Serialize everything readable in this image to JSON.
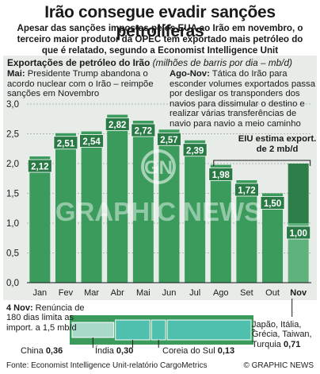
{
  "title": "Irão consegue evadir sanções petrolíferas",
  "subtitle": "Apesar das sanções impostas pelos EUA ao Irão em novembro, o terceiro maior produtor da OPEC tem exportado mais petróleo do que é relatado, segundo a Economist Intelligence Unit",
  "chart_head": {
    "label": "Exportações de petróleo do Irão",
    "unit": "(milhões de barris por dia – mb/d)"
  },
  "notes": {
    "mai": {
      "lead": "Mai:",
      "text": " Presidente Trump abandona o acordo nuclear com o Irão – reimpõe sanções em Novembro"
    },
    "ago": {
      "lead": "Ago-Nov:",
      "text": " Tática do Irão para esconder volumes exportados passa por desligar os transponders dos navios para dissimular o destino e realizar várias transferências de navio para navio a meio caminho"
    },
    "eiu": "EIU estima export. de 2 mb/d"
  },
  "bottom_note": {
    "lead": "4 Nov:",
    "text": " Renúncia de 180 dias limita as import. a 1,5 mb/d"
  },
  "waiver_labels": {
    "china": {
      "name": "China",
      "value": "0,36"
    },
    "india": {
      "name": "Índia",
      "value": "0,30"
    },
    "korea": {
      "name": "Coreia do Sul",
      "value": "0,13"
    },
    "japan": {
      "name": "Japão, Itália, Grécia, Taiwan, Turquia",
      "value": "0,71"
    }
  },
  "footer": {
    "source": "Fonte: Economist Intelligence Unit-relatório CargoMetrics",
    "brand": "© GRAPHIC NEWS"
  },
  "watermark": {
    "mark": "GN",
    "text": "GRAPHIC NEWS"
  },
  "colors": {
    "bar": "#3a9b5c",
    "bar_dark": "#2a7a45",
    "bar_nov_upper": "#2e7e4a",
    "bar_nov_lower": "#5fb27b",
    "panel": "#e7ece8",
    "waiver_fill": "#4fbfae",
    "waiver_frame": "#3a9b5c"
  },
  "chart_data": {
    "type": "bar",
    "title": "Exportações de petróleo do Irão",
    "ylabel": "milhões de barris por dia – mb/d",
    "categories": [
      "Jan",
      "Fev",
      "Mar",
      "Abr",
      "Mai",
      "Jun",
      "Jul",
      "Ago",
      "Set",
      "Out",
      "Nov"
    ],
    "values": [
      2.12,
      2.51,
      2.54,
      2.82,
      2.72,
      2.57,
      2.39,
      1.98,
      1.72,
      1.5,
      1.0
    ],
    "value_labels": [
      "2,12",
      "2,51",
      "2,54",
      "2,82",
      "2,72",
      "2,57",
      "2,39",
      "1,98",
      "1,72",
      "1,50",
      "1,00"
    ],
    "estimate": {
      "category": "Nov",
      "value": 2.0,
      "label": "EIU estima export. de 2 mb/d"
    },
    "ylim": [
      0,
      3.0
    ],
    "yticks": [
      0,
      0.5,
      1.0,
      1.5,
      2.0,
      2.5,
      3.0
    ],
    "ytick_labels": [
      "0,0",
      "0,5",
      "1,0",
      "1,5",
      "2,0",
      "2,5",
      "3,0"
    ],
    "grid": true,
    "waiver": {
      "limit": 1.5,
      "segments": [
        {
          "name": "China",
          "value": 0.36
        },
        {
          "name": "Índia",
          "value": 0.3
        },
        {
          "name": "Coreia do Sul",
          "value": 0.13
        },
        {
          "name": "Japão, Itália, Grécia, Taiwan, Turquia",
          "value": 0.71
        }
      ]
    }
  }
}
